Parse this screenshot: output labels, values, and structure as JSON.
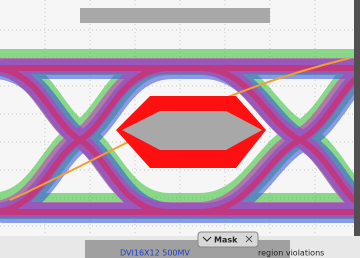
{
  "status_bar": {
    "signal": "DVI16X12 500MV",
    "tab": "Mask",
    "message": "region violations"
  }
}
